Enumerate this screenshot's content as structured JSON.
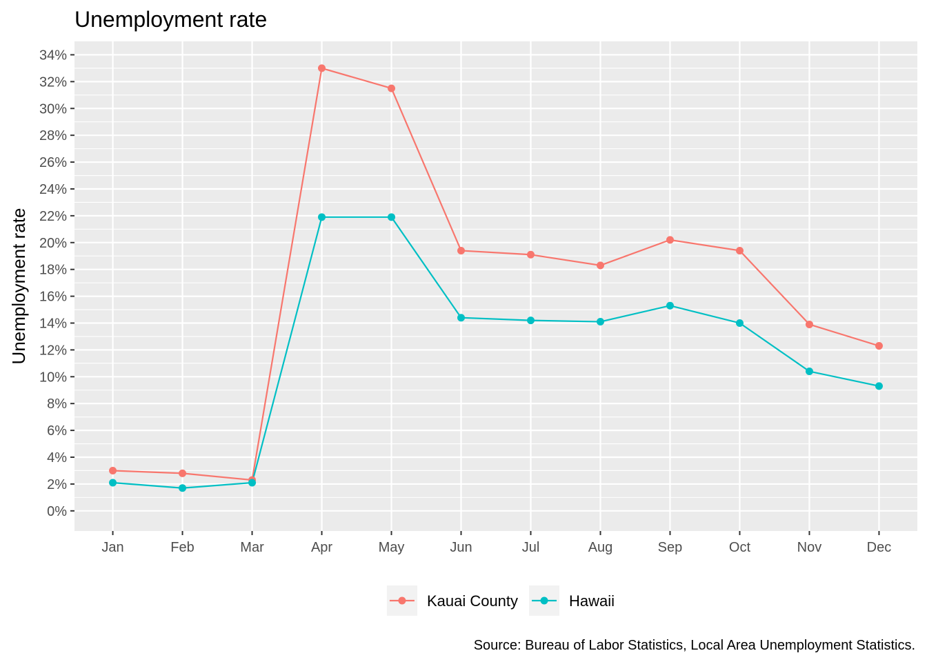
{
  "chart_data": {
    "type": "line",
    "title": "Unemployment rate",
    "xlabel": "",
    "ylabel": "Unemployment rate",
    "caption": "Source: Bureau of Labor Statistics, Local Area Unemployment Statistics.",
    "categories": [
      "Jan",
      "Feb",
      "Mar",
      "Apr",
      "May",
      "Jun",
      "Jul",
      "Aug",
      "Sep",
      "Oct",
      "Nov",
      "Dec"
    ],
    "y_ticks": [
      0,
      2,
      4,
      6,
      8,
      10,
      12,
      14,
      16,
      18,
      20,
      22,
      24,
      26,
      28,
      30,
      32,
      34
    ],
    "y_tick_labels": [
      "0%",
      "2%",
      "4%",
      "6%",
      "8%",
      "10%",
      "12%",
      "14%",
      "16%",
      "18%",
      "20%",
      "22%",
      "24%",
      "26%",
      "28%",
      "30%",
      "32%",
      "34%"
    ],
    "ylim": [
      -1.5,
      35
    ],
    "grid": true,
    "legend_position": "bottom",
    "series": [
      {
        "name": "Kauai County",
        "color": "#F8766D",
        "values": [
          3.0,
          2.8,
          2.3,
          33.0,
          31.5,
          19.4,
          19.1,
          18.3,
          20.2,
          19.4,
          13.9,
          12.3
        ]
      },
      {
        "name": "Hawaii",
        "color": "#00BFC4",
        "values": [
          2.1,
          1.7,
          2.1,
          21.9,
          21.9,
          14.4,
          14.2,
          14.1,
          15.3,
          14.0,
          10.4,
          9.3
        ]
      }
    ]
  }
}
